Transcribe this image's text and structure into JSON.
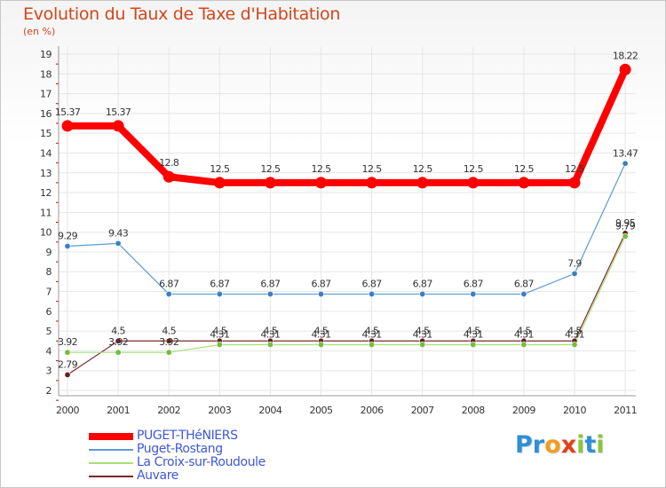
{
  "title": "Evolution du Taux de Taxe d'Habitation",
  "subtitle": "(en %)",
  "brand": {
    "name": "Proxiti",
    "letters": [
      "P",
      "r",
      "o",
      "x",
      "i",
      "t",
      "i"
    ],
    "letter_colors": [
      "#2e8fd6",
      "#2e8fd6",
      "#f39c1f",
      "#e0421c",
      "#8bc53f",
      "#2e8fd6",
      "#8bc53f"
    ]
  },
  "colors": {
    "title": "#d2461c",
    "axis_text": "#333333",
    "grid": "#e6e6e6",
    "axis_tick": "#cc0000",
    "legend_text": "#3e58d8"
  },
  "chart_data": {
    "type": "line",
    "title": "Evolution du Taux de Taxe d'Habitation",
    "subtitle": "(en %)",
    "xlabel": "",
    "ylabel": "",
    "categories": [
      "2000",
      "2001",
      "2002",
      "2003",
      "2004",
      "2005",
      "2006",
      "2007",
      "2008",
      "2009",
      "2010",
      "2011"
    ],
    "y_ticks": [
      "2",
      "3",
      "4",
      "5",
      "6",
      "7",
      "8",
      "9",
      "10",
      "11",
      "12",
      "13",
      "14",
      "15",
      "16",
      "17",
      "18",
      "19"
    ],
    "ylim": [
      2,
      19
    ],
    "grid": true,
    "legend_position": "bottom-left",
    "series": [
      {
        "name": "PUGET-THéNIERS",
        "color": "#ff0000",
        "marker": "#ff0000",
        "values": [
          15.37,
          15.37,
          12.8,
          12.5,
          12.5,
          12.5,
          12.5,
          12.5,
          12.5,
          12.5,
          12.5,
          18.22
        ],
        "labels": [
          "15.37",
          "15.37",
          "12.8",
          "12.5",
          "12.5",
          "12.5",
          "12.5",
          "12.5",
          "12.5",
          "12.5",
          "12.5",
          "18.22"
        ]
      },
      {
        "name": "Puget-Rostang",
        "color": "#5b9bd5",
        "marker": "#3f7fc0",
        "values": [
          9.29,
          9.43,
          6.87,
          6.87,
          6.87,
          6.87,
          6.87,
          6.87,
          6.87,
          6.87,
          7.9,
          13.47
        ],
        "labels": [
          "9.29",
          "9.43",
          "6.87",
          "6.87",
          "6.87",
          "6.87",
          "6.87",
          "6.87",
          "6.87",
          "6.87",
          "7.9",
          "13.47"
        ]
      },
      {
        "name": "La Croix-sur-Roudoule",
        "color": "#a6e07a",
        "marker": "#6fbf3c",
        "values": [
          3.92,
          3.92,
          3.92,
          4.31,
          4.31,
          4.31,
          4.31,
          4.31,
          4.31,
          4.31,
          4.31,
          9.79
        ],
        "labels": [
          "3.92",
          "3.92",
          "3.92",
          "4.31",
          "4.31",
          "4.31",
          "4.31",
          "4.31",
          "4.31",
          "4.31",
          "4.31",
          "9.79"
        ]
      },
      {
        "name": "Auvare",
        "color": "#7a2a2a",
        "marker": "#6b1f1f",
        "values": [
          2.79,
          4.5,
          4.5,
          4.5,
          4.5,
          4.5,
          4.5,
          4.5,
          4.5,
          4.5,
          4.5,
          9.95
        ],
        "labels": [
          "2.79",
          "4.5",
          "4.5",
          "4.5",
          "4.5",
          "4.5",
          "4.5",
          "4.5",
          "4.5",
          "4.5",
          "4.5",
          "9.95"
        ]
      }
    ]
  }
}
